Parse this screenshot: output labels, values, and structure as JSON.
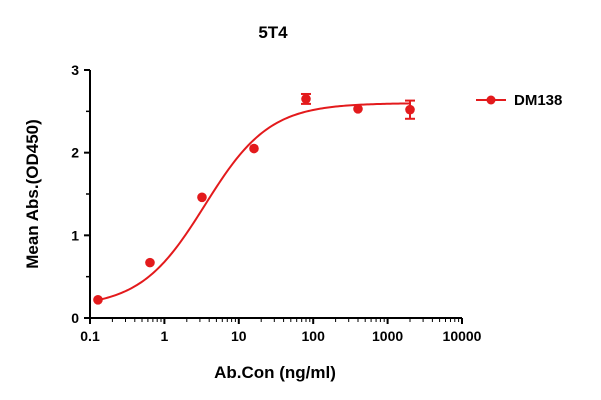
{
  "chart_data": {
    "type": "scatter",
    "title": "5T4",
    "xlabel": "Ab.Con (ng/ml)",
    "ylabel": "Mean Abs.(OD450)",
    "x_scale": "log",
    "xlim": [
      0.1,
      10000
    ],
    "ylim": [
      0,
      3
    ],
    "x_ticks": [
      0.1,
      1,
      10,
      100,
      1000,
      10000
    ],
    "x_tick_labels": [
      "0.1",
      "1",
      "10",
      "100",
      "1000",
      "10000"
    ],
    "y_ticks": [
      0,
      1,
      2,
      3
    ],
    "y_tick_labels": [
      "0",
      "1",
      "2",
      "3"
    ],
    "grid": false,
    "legend_position": "top-right",
    "color": "#e31a1c",
    "series": [
      {
        "name": "DM138",
        "x": [
          0.128,
          0.64,
          3.2,
          16,
          80,
          400,
          2000
        ],
        "y": [
          0.22,
          0.67,
          1.46,
          2.05,
          2.65,
          2.53,
          2.52
        ],
        "error": [
          0.01,
          0.01,
          0.01,
          0.01,
          0.06,
          0.02,
          0.11
        ],
        "fit": {
          "model": "4PL",
          "bottom": 0.13,
          "top": 2.6,
          "ec50": 3.5,
          "hill": 1.0
        }
      }
    ]
  }
}
